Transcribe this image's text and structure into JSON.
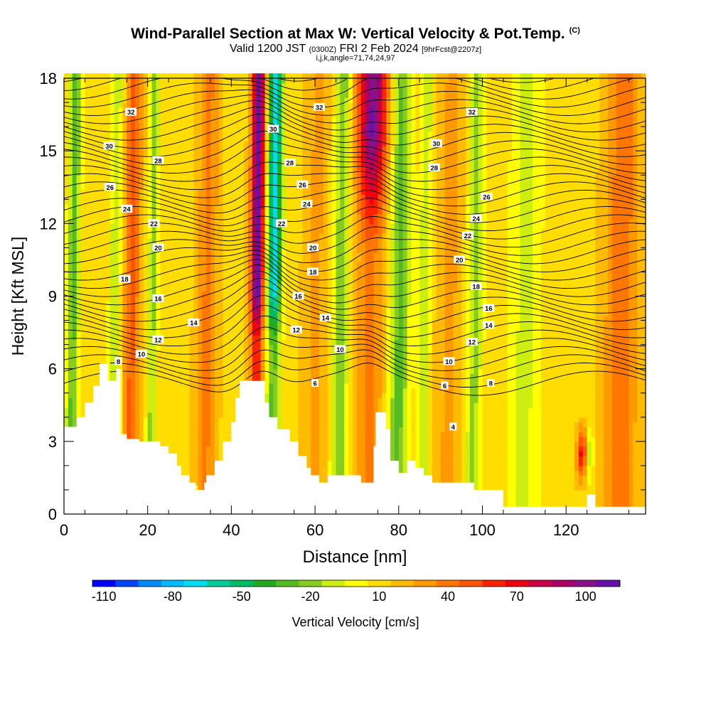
{
  "title": {
    "main": "Wind-Parallel Section at Max W: Vertical Velocity & Pot.Temp.",
    "copyright": "(C)",
    "valid_prefix": "Valid 1200 JST",
    "valid_utc": "(0300Z)",
    "valid_date": "FRI 2 Feb 2024",
    "forecast": "[9hrFcst@2207z]",
    "params": "i,j,k,angle=71,74,24,97"
  },
  "chart_data": {
    "type": "heatmap",
    "xlabel": "Distance [nm]",
    "ylabel": "Height [Kft MSL]",
    "xlim": [
      0,
      139
    ],
    "ylim": [
      0,
      18
    ],
    "x_ticks": [
      "0",
      "20",
      "40",
      "60",
      "80",
      "100",
      "120"
    ],
    "x_tick_values": [
      0,
      20,
      40,
      60,
      80,
      100,
      120
    ],
    "y_ticks": [
      "0",
      "3",
      "6",
      "9",
      "12",
      "15",
      "18"
    ],
    "y_tick_values": [
      0,
      3,
      6,
      9,
      12,
      15,
      18
    ],
    "colorbar": {
      "label": "Vertical Velocity [cm/s]",
      "min": -115,
      "max": 115,
      "step": 10,
      "tick_labels": [
        "-110",
        "-80",
        "-50",
        "-20",
        "10",
        "40",
        "70",
        "100"
      ],
      "tick_values": [
        -110,
        -80,
        -50,
        -20,
        10,
        40,
        70,
        100
      ],
      "colors": [
        "#0000ff",
        "#0044ff",
        "#0088ff",
        "#00bbff",
        "#00ddee",
        "#00cc99",
        "#00bb66",
        "#22aa22",
        "#55bb22",
        "#88cc22",
        "#ccee11",
        "#ffff00",
        "#ffdd00",
        "#ffbb00",
        "#ff9900",
        "#ff7700",
        "#ff5500",
        "#ff2200",
        "#ee0011",
        "#cc0044",
        "#aa0066",
        "#881188",
        "#6611aa"
      ]
    },
    "updraft_bands": [
      {
        "x": 46,
        "w": 1.6,
        "amp": 100
      },
      {
        "x": 73,
        "w": 3.5,
        "amp": 85
      },
      {
        "x": 16,
        "w": 2.0,
        "amp": 35
      },
      {
        "x": 34,
        "w": 2.5,
        "amp": 25
      },
      {
        "x": 60,
        "w": 3.0,
        "amp": 15
      },
      {
        "x": 92,
        "w": 3.5,
        "amp": 15
      },
      {
        "x": 124,
        "w": 1.2,
        "amp": 60
      },
      {
        "x": 133,
        "w": 4.0,
        "amp": 30
      }
    ],
    "downdraft_bands": [
      {
        "x": 50,
        "w": 1.8,
        "amp": -80
      },
      {
        "x": 2,
        "w": 1.5,
        "amp": -40
      },
      {
        "x": 12,
        "w": 1.5,
        "amp": -25
      },
      {
        "x": 21,
        "w": 1.2,
        "amp": -30
      },
      {
        "x": 66,
        "w": 2.0,
        "amp": -35
      },
      {
        "x": 80,
        "w": 2.5,
        "amp": -40
      },
      {
        "x": 86,
        "w": 1.5,
        "amp": -25
      },
      {
        "x": 98,
        "w": 2.0,
        "amp": -30
      },
      {
        "x": 110,
        "w": 4.0,
        "amp": -20
      },
      {
        "x": 126,
        "w": 0.8,
        "amp": -35
      }
    ],
    "terrain_kft": [
      [
        0,
        3.6
      ],
      [
        3,
        3.6
      ],
      [
        3,
        4.0
      ],
      [
        5,
        4.0
      ],
      [
        5,
        4.6
      ],
      [
        7,
        4.6
      ],
      [
        7,
        5.3
      ],
      [
        8.5,
        5.3
      ],
      [
        8.5,
        6.2
      ],
      [
        10.5,
        6.2
      ],
      [
        10.5,
        5.5
      ],
      [
        12.5,
        5.5
      ],
      [
        12.5,
        6.0
      ],
      [
        13.5,
        6.0
      ],
      [
        13.5,
        3.3
      ],
      [
        15,
        3.3
      ],
      [
        15,
        3.1
      ],
      [
        18,
        3.1
      ],
      [
        18,
        3.0
      ],
      [
        23,
        3.0
      ],
      [
        23,
        2.8
      ],
      [
        25,
        2.8
      ],
      [
        25,
        2.5
      ],
      [
        27,
        2.5
      ],
      [
        27,
        2.0
      ],
      [
        28,
        2.0
      ],
      [
        28,
        1.6
      ],
      [
        30,
        1.6
      ],
      [
        30,
        1.3
      ],
      [
        31.5,
        1.3
      ],
      [
        31.5,
        1.0
      ],
      [
        33.5,
        1.0
      ],
      [
        33.5,
        1.3
      ],
      [
        34,
        1.3
      ],
      [
        34,
        1.6
      ],
      [
        36,
        1.6
      ],
      [
        36,
        2.2
      ],
      [
        38,
        2.2
      ],
      [
        38,
        3.0
      ],
      [
        40,
        3.0
      ],
      [
        40,
        3.8
      ],
      [
        41,
        3.8
      ],
      [
        41,
        4.8
      ],
      [
        42,
        4.8
      ],
      [
        42,
        5.5
      ],
      [
        48,
        5.5
      ],
      [
        48,
        4.6
      ],
      [
        49,
        4.6
      ],
      [
        49,
        4.0
      ],
      [
        51,
        4.0
      ],
      [
        51,
        3.5
      ],
      [
        54,
        3.5
      ],
      [
        54,
        3.0
      ],
      [
        56,
        3.0
      ],
      [
        56,
        2.4
      ],
      [
        58,
        2.4
      ],
      [
        58,
        1.9
      ],
      [
        59,
        1.9
      ],
      [
        59,
        1.6
      ],
      [
        61,
        1.6
      ],
      [
        61,
        1.3
      ],
      [
        63,
        1.3
      ],
      [
        63,
        1.6
      ],
      [
        67,
        1.6
      ],
      [
        67,
        1.6
      ],
      [
        71,
        1.6
      ],
      [
        71,
        1.3
      ],
      [
        74,
        1.3
      ],
      [
        74,
        2.8
      ],
      [
        74.5,
        2.8
      ],
      [
        74.5,
        4.2
      ],
      [
        77,
        4.2
      ],
      [
        77,
        3.5
      ],
      [
        78,
        3.5
      ],
      [
        78,
        2.2
      ],
      [
        80,
        2.2
      ],
      [
        80,
        1.7
      ],
      [
        82,
        1.7
      ],
      [
        82,
        2.2
      ],
      [
        84,
        2.2
      ],
      [
        84,
        1.9
      ],
      [
        86,
        1.9
      ],
      [
        86,
        1.6
      ],
      [
        88,
        1.6
      ],
      [
        88,
        1.3
      ],
      [
        98,
        1.3
      ],
      [
        98,
        1.0
      ],
      [
        105,
        1.0
      ],
      [
        105,
        0.3
      ],
      [
        125,
        0.3
      ],
      [
        125,
        0.8
      ],
      [
        127,
        0.8
      ],
      [
        127,
        0.3
      ],
      [
        139,
        0.3
      ]
    ],
    "theta_contour_labels": [
      {
        "v": 4,
        "x": 93,
        "y": 3.6
      },
      {
        "v": 6,
        "x": 60,
        "y": 5.4
      },
      {
        "v": 6,
        "x": 91,
        "y": 5.3
      },
      {
        "v": 8,
        "x": 13,
        "y": 6.3
      },
      {
        "v": 8,
        "x": 102,
        "y": 5.4
      },
      {
        "v": 10,
        "x": 18.5,
        "y": 6.6
      },
      {
        "v": 10,
        "x": 66,
        "y": 6.8
      },
      {
        "v": 10,
        "x": 92,
        "y": 6.3
      },
      {
        "v": 12,
        "x": 22.5,
        "y": 7.2
      },
      {
        "v": 12,
        "x": 55.5,
        "y": 7.6
      },
      {
        "v": 12,
        "x": 97.5,
        "y": 7.1
      },
      {
        "v": 14,
        "x": 31,
        "y": 7.9
      },
      {
        "v": 14,
        "x": 62.5,
        "y": 8.1
      },
      {
        "v": 14,
        "x": 101.5,
        "y": 7.8
      },
      {
        "v": 16,
        "x": 22.5,
        "y": 8.9
      },
      {
        "v": 16,
        "x": 56,
        "y": 9.0
      },
      {
        "v": 16,
        "x": 101.5,
        "y": 8.5
      },
      {
        "v": 18,
        "x": 14.5,
        "y": 9.7
      },
      {
        "v": 18,
        "x": 98.5,
        "y": 9.4
      },
      {
        "v": 20,
        "x": 22.5,
        "y": 11.0
      },
      {
        "v": 20,
        "x": 59.5,
        "y": 11.0
      },
      {
        "v": 20,
        "x": 94.5,
        "y": 10.5
      },
      {
        "v": 18,
        "x": 59.5,
        "y": 10.0
      },
      {
        "v": 22,
        "x": 21.5,
        "y": 12.0
      },
      {
        "v": 22,
        "x": 52,
        "y": 12.0
      },
      {
        "v": 22,
        "x": 96.5,
        "y": 11.5
      },
      {
        "v": 24,
        "x": 15,
        "y": 12.6
      },
      {
        "v": 24,
        "x": 58,
        "y": 12.8
      },
      {
        "v": 24,
        "x": 98.5,
        "y": 12.2
      },
      {
        "v": 26,
        "x": 11,
        "y": 13.5
      },
      {
        "v": 26,
        "x": 57,
        "y": 13.6
      },
      {
        "v": 26,
        "x": 101,
        "y": 13.1
      },
      {
        "v": 28,
        "x": 22.5,
        "y": 14.6
      },
      {
        "v": 28,
        "x": 54,
        "y": 14.5
      },
      {
        "v": 28,
        "x": 88.5,
        "y": 14.3
      },
      {
        "v": 30,
        "x": 10.8,
        "y": 15.2
      },
      {
        "v": 30,
        "x": 50,
        "y": 15.9
      },
      {
        "v": 30,
        "x": 89,
        "y": 15.3
      },
      {
        "v": 32,
        "x": 16,
        "y": 16.6
      },
      {
        "v": 32,
        "x": 61,
        "y": 16.8
      },
      {
        "v": 32,
        "x": 97.5,
        "y": 16.6
      }
    ]
  }
}
